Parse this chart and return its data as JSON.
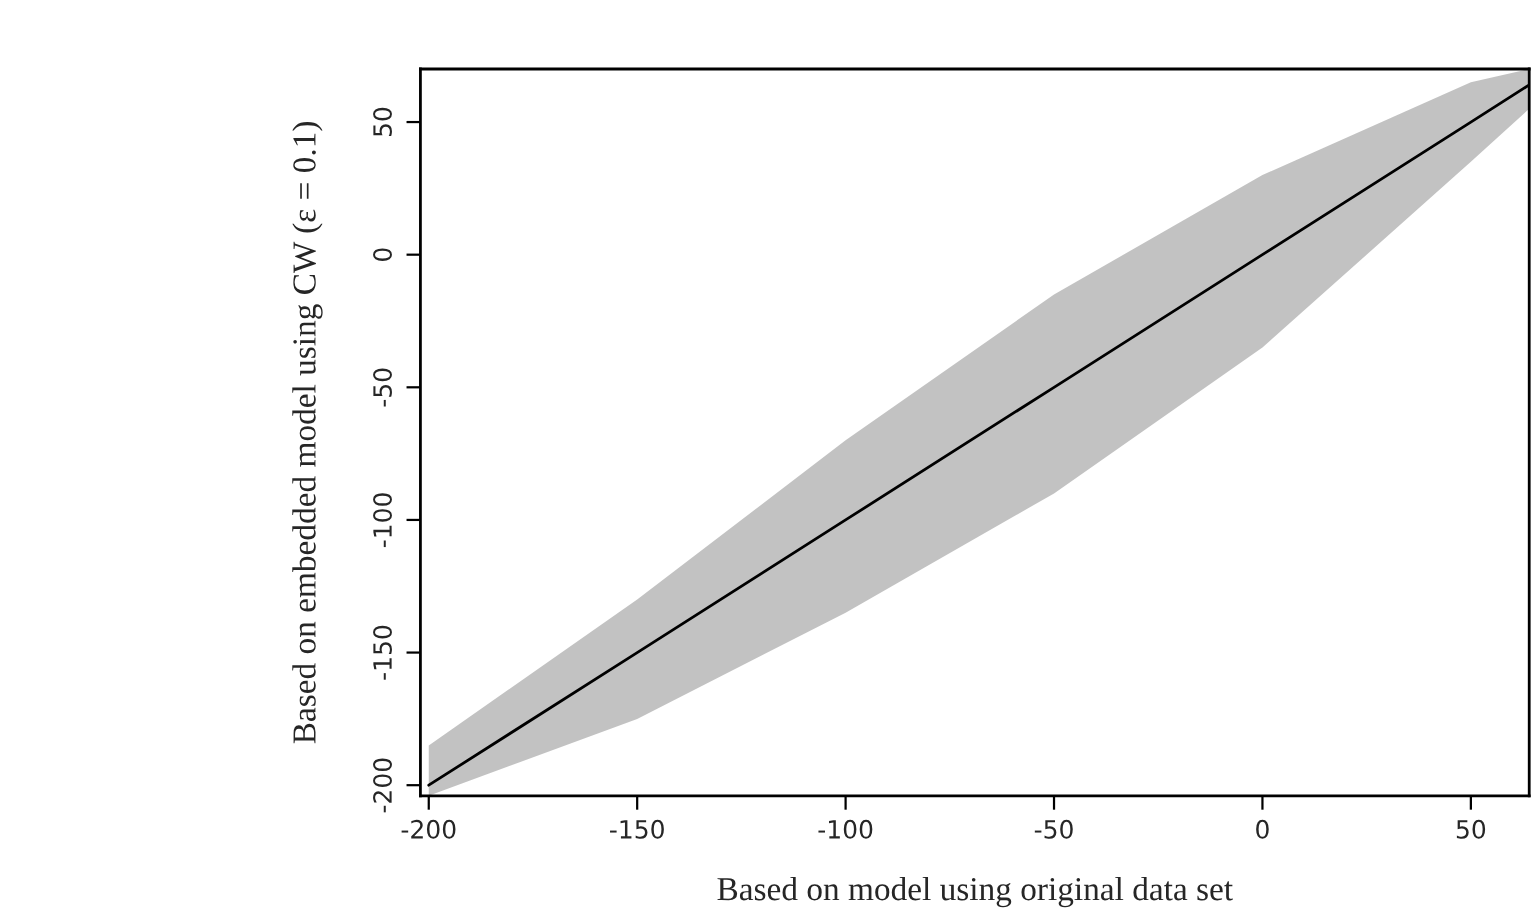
{
  "chart_data": {
    "type": "line",
    "xlabel": "Based on model using original data set",
    "ylabel": "Based on embedded model using CW (ε = 0.1)",
    "series": [
      {
        "color": "#000000",
        "x": [
          -200,
          -150,
          -100,
          -50,
          0,
          50,
          64
        ],
        "values": [
          -200,
          -150,
          -100,
          -50,
          0,
          50,
          64
        ],
        "lower": [
          -204,
          -175,
          -135,
          -90,
          -35,
          35,
          55
        ],
        "upper": [
          -185,
          -130,
          -70,
          -15,
          30,
          65,
          70
        ]
      }
    ],
    "xlim": [
      -202,
      64
    ],
    "ylim": [
      -204,
      70
    ],
    "xticks": [
      -200,
      -150,
      -100,
      -50,
      0,
      50
    ],
    "yticks": [
      -200,
      -150,
      -100,
      -50,
      0,
      50
    ],
    "grid": false,
    "legend": false
  }
}
